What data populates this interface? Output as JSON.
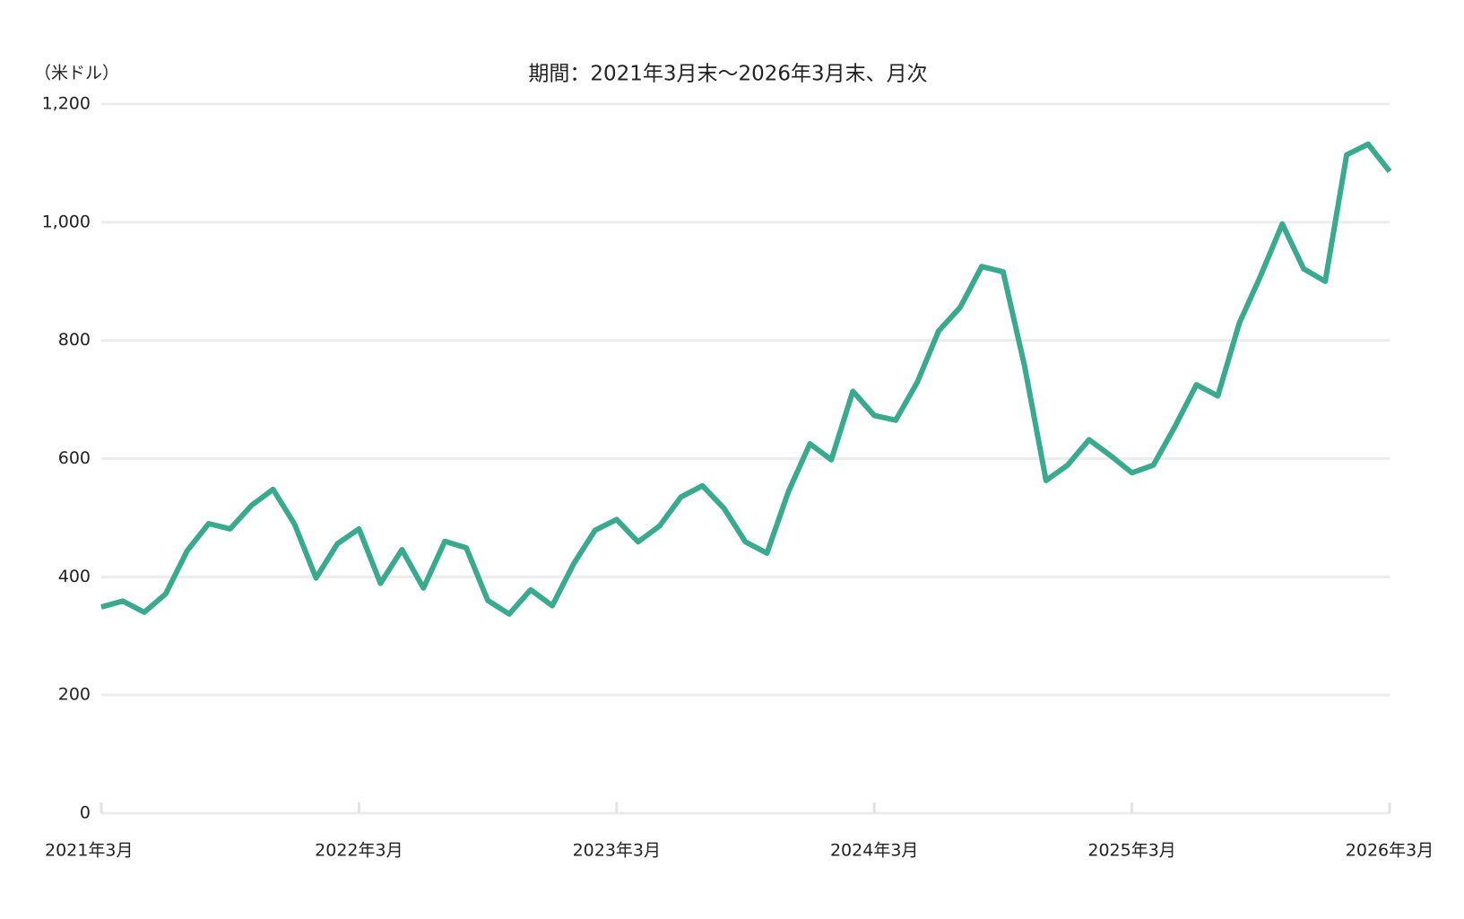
{
  "chart_data": {
    "type": "line",
    "title": "期間：2021年3月末～2026年3月末、月次",
    "y_label": "（米ドル）",
    "categories": [
      "2021年3月",
      null,
      null,
      null,
      null,
      null,
      null,
      null,
      null,
      null,
      null,
      null,
      "2022年3月",
      null,
      null,
      null,
      null,
      null,
      null,
      null,
      null,
      null,
      null,
      null,
      "2023年3月",
      null,
      null,
      null,
      null,
      null,
      null,
      null,
      null,
      null,
      null,
      null,
      "2024年3月",
      null,
      null,
      null,
      null,
      null,
      null,
      null,
      null,
      null,
      null,
      null,
      "2025年3月",
      null,
      null,
      null,
      null,
      null,
      null,
      null,
      null,
      null,
      null,
      null,
      "2026年3月"
    ],
    "values": [
      349,
      359,
      340,
      371,
      444,
      490,
      481,
      521,
      548,
      489,
      398,
      456,
      481,
      389,
      446,
      381,
      460,
      449,
      360,
      337,
      378,
      351,
      422,
      479,
      497,
      459,
      486,
      535,
      554,
      516,
      459,
      440,
      544,
      625,
      598,
      714,
      673,
      665,
      729,
      816,
      856,
      925,
      916,
      757,
      563,
      589,
      632,
      605,
      576,
      589,
      654,
      725,
      706,
      829,
      910,
      997,
      921,
      900,
      1114,
      1132,
      1086
    ],
    "color": "#3aaa8f",
    "ylim": [
      0,
      1200
    ],
    "yticks": [
      0,
      200,
      400,
      600,
      800,
      {
        "value": 1000,
        "label": "1,000"
      },
      {
        "value": 1200,
        "label": "1,200"
      }
    ],
    "grid": true
  }
}
